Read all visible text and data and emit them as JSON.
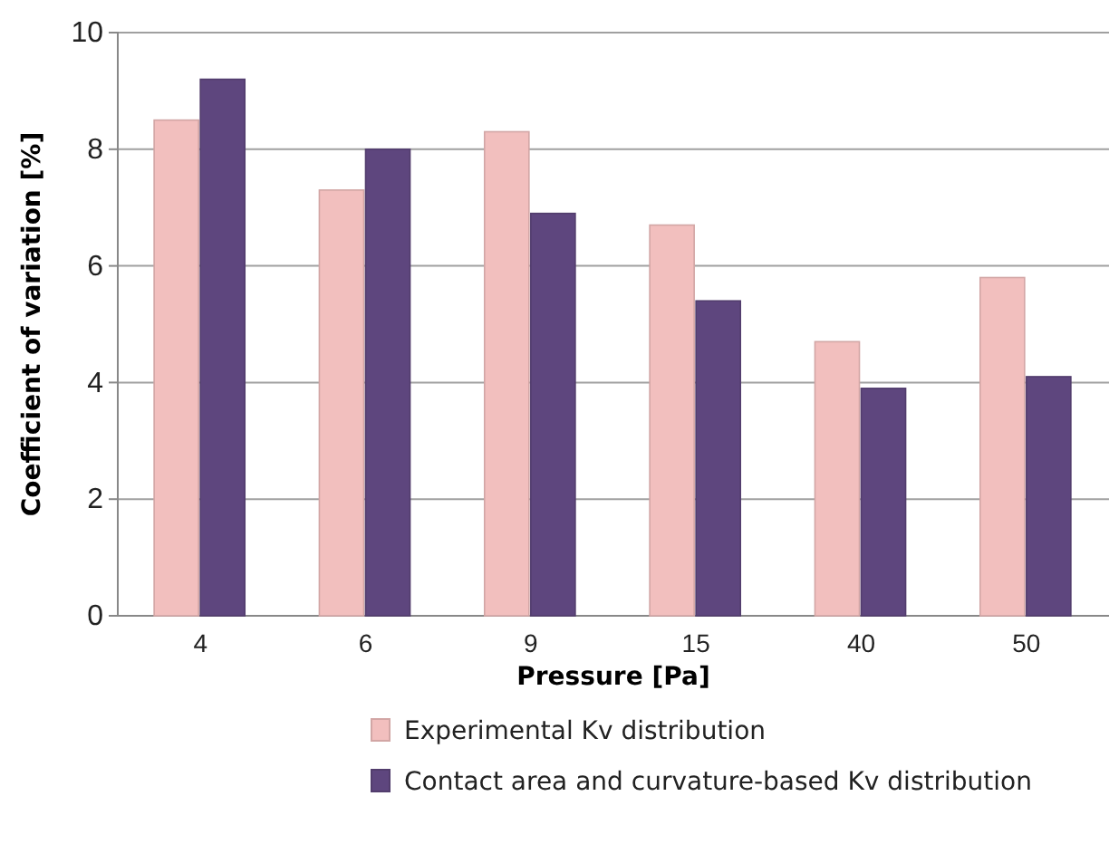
{
  "chart_data": {
    "type": "bar",
    "xlabel": "Pressure [Pa]",
    "ylabel": "Coefficient of variation [%]",
    "categories": [
      "4",
      "6",
      "9",
      "15",
      "40",
      "50"
    ],
    "series": [
      {
        "name": "Experimental Kv distribution",
        "color": "#f2bfbe",
        "values": [
          8.5,
          7.3,
          8.3,
          6.7,
          4.7,
          5.8
        ]
      },
      {
        "name": "Contact area and curvature-based Kv distribution",
        "color": "#5e467e",
        "values": [
          9.2,
          8.0,
          6.9,
          5.4,
          3.9,
          4.1
        ]
      }
    ],
    "ylim": [
      0,
      10
    ],
    "yticks": [
      0,
      2,
      4,
      6,
      8,
      10
    ],
    "grid": "y",
    "legend": "bottom"
  }
}
